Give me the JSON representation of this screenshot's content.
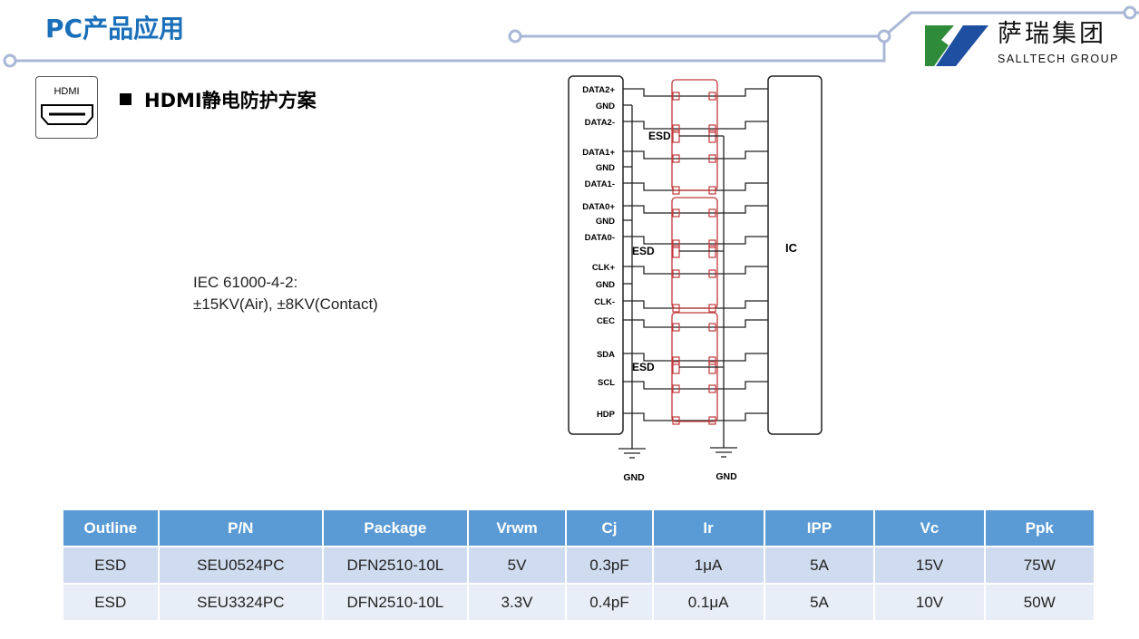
{
  "header": {
    "title": "PC产品应用"
  },
  "logo": {
    "cn": "萨瑞集团",
    "en": "SALLTECH GROUP",
    "green": "#2e8b3a",
    "blue": "#1f4fa0"
  },
  "section": {
    "icon": "hdmi-port-icon",
    "icon_label": "HDMI",
    "title": "HDMI静电防护方案"
  },
  "spec": {
    "line1": "IEC 61000-4-2:",
    "line2": "±15KV(Air), ±8KV(Contact)"
  },
  "diagram": {
    "pins": [
      "DATA2+",
      "GND",
      "DATA2-",
      "DATA1+",
      "GND",
      "DATA1-",
      "DATA0+",
      "GND",
      "DATA0-",
      "CLK+",
      "GND",
      "CLK-",
      "CEC",
      "SDA",
      "SCL",
      "HDP"
    ],
    "esd_label": "ESD",
    "ic_label": "IC",
    "gnd_label": "GND",
    "esd_color": "#c0393b"
  },
  "table": {
    "headers": [
      "Outline",
      "P/N",
      "Package",
      "Vrwm",
      "Cj",
      "Ir",
      "IPP",
      "Vc",
      "Ppk"
    ],
    "rows": [
      [
        "ESD",
        "SEU0524PC",
        "DFN2510-10L",
        "5V",
        "0.3pF",
        "1μA",
        "5A",
        "15V",
        "75W"
      ],
      [
        "ESD",
        "SEU3324PC",
        "DFN2510-10L",
        "3.3V",
        "0.4pF",
        "0.1μA",
        "5A",
        "10V",
        "50W"
      ]
    ]
  }
}
